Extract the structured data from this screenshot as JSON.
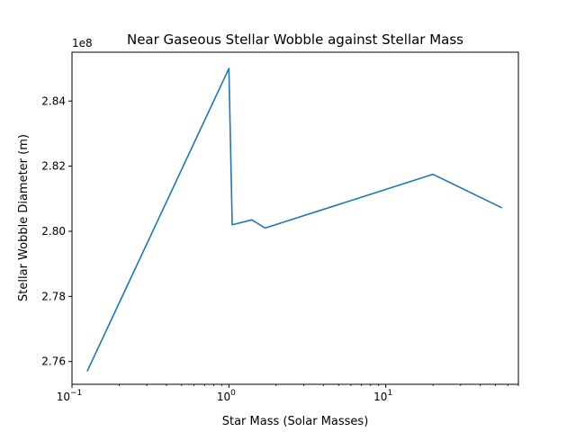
{
  "chart_data": {
    "type": "line",
    "title": "Near Gaseous Stellar Wobble against Stellar Mass",
    "xlabel": "Star Mass (Solar Masses)",
    "ylabel": "Stellar Wobble Diameter (m)",
    "x_scale": "log",
    "xlim": [
      0.1,
      70
    ],
    "ylim": [
      2.753,
      2.855
    ],
    "y_offset_label": "1e8",
    "x_ticks": [
      {
        "value": 0.1,
        "label": "10",
        "exp": "−1"
      },
      {
        "value": 1,
        "label": "10",
        "exp": "0"
      },
      {
        "value": 10,
        "label": "10",
        "exp": "1"
      }
    ],
    "y_ticks": [
      {
        "value": 2.76,
        "label": "2.76"
      },
      {
        "value": 2.78,
        "label": "2.78"
      },
      {
        "value": 2.8,
        "label": "2.80"
      },
      {
        "value": 2.82,
        "label": "2.82"
      },
      {
        "value": 2.84,
        "label": "2.84"
      }
    ],
    "grid": false,
    "color": "#1f77b4",
    "series": [
      {
        "x": [
          0.125,
          1.0,
          1.05,
          1.4,
          1.7,
          20.0,
          55.0
        ],
        "y": [
          2.757,
          2.85,
          2.802,
          2.8035,
          2.801,
          2.8175,
          2.8072
        ]
      }
    ]
  }
}
